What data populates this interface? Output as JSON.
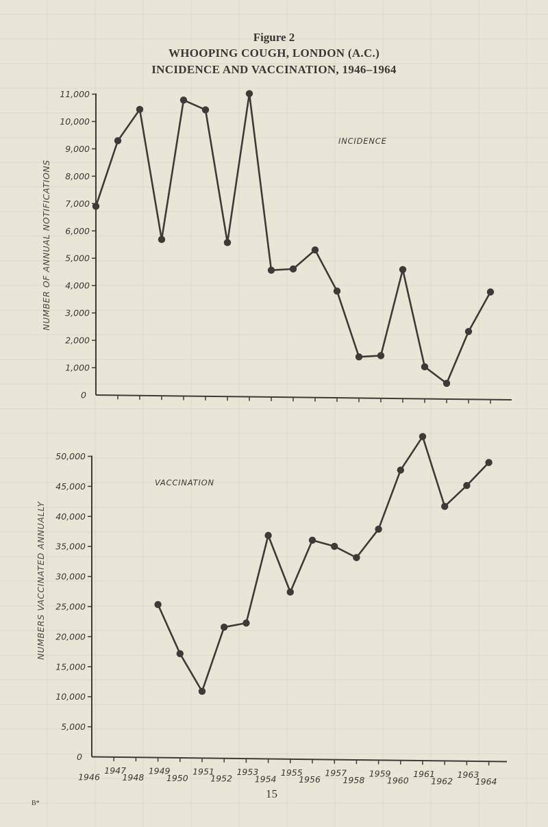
{
  "page": {
    "figure_number": "Figure 2",
    "title_line1": "WHOOPING COUGH, LONDON (A.C.)",
    "title_line2": "INCIDENCE AND VACCINATION, 1946–1964",
    "page_number": "15",
    "signature_mark": "B*"
  },
  "colors": {
    "background": "#e9e6d7",
    "line": "#3d3a38",
    "marker": "#3d3a38",
    "text": "#3a3734"
  },
  "chart_data": [
    {
      "type": "line",
      "title": "INCIDENCE",
      "xlabel": "",
      "ylabel": "NUMBER OF ANNUAL NOTIFICATIONS",
      "x": [
        1946,
        1947,
        1948,
        1949,
        1950,
        1951,
        1952,
        1953,
        1954,
        1955,
        1956,
        1957,
        1958,
        1959,
        1960,
        1961,
        1962,
        1963,
        1964
      ],
      "values": [
        6900,
        9300,
        10450,
        5700,
        10800,
        10450,
        5600,
        11050,
        4600,
        4650,
        5350,
        3850,
        1450,
        1500,
        4650,
        1100,
        500,
        2400,
        3850
      ],
      "yticks": [
        0,
        1000,
        2000,
        3000,
        4000,
        5000,
        6000,
        7000,
        8000,
        9000,
        10000,
        11000
      ],
      "ytick_labels": [
        "0",
        "1,000",
        "2,000",
        "3,000",
        "4,000",
        "5,000",
        "6,000",
        "7,000",
        "8,000",
        "9,000",
        "10,000",
        "11,000"
      ],
      "ylim": [
        0,
        11000
      ],
      "grid": false,
      "markers": true
    },
    {
      "type": "line",
      "title": "VACCINATION",
      "xlabel": "",
      "ylabel": "NUMBERS VACCINATED ANNUALLY",
      "x": [
        1949,
        1950,
        1951,
        1952,
        1953,
        1954,
        1955,
        1956,
        1957,
        1958,
        1959,
        1960,
        1961,
        1962,
        1963,
        1964
      ],
      "values": [
        25400,
        17250,
        11000,
        21700,
        22400,
        37000,
        27600,
        36250,
        35250,
        33400,
        38150,
        48000,
        53600,
        42000,
        45500,
        49350
      ],
      "yticks": [
        0,
        5000,
        10000,
        15000,
        20000,
        25000,
        30000,
        35000,
        40000,
        45000,
        50000
      ],
      "ytick_labels": [
        "0",
        "5,000",
        "10,000",
        "15,000",
        "20,000",
        "25,000",
        "30,000",
        "35,000",
        "40,000",
        "45,000",
        "50,000"
      ],
      "xtick_labels": [
        "1946",
        "1947",
        "1948",
        "1949",
        "1950",
        "1951",
        "1952",
        "1953",
        "1954",
        "1955",
        "1956",
        "1957",
        "1958",
        "1959",
        "1960",
        "1961",
        "1962",
        "1963",
        "1964"
      ],
      "ylim": [
        0,
        50000
      ],
      "grid": false,
      "markers": true
    }
  ]
}
